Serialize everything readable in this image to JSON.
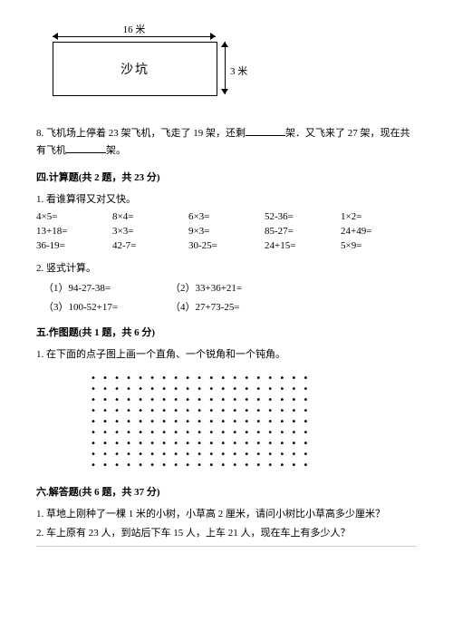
{
  "diagram": {
    "label": "沙坑",
    "width_label": "16 米",
    "height_label": "3 米"
  },
  "q8": {
    "text_a": "8. 飞机场上停着 23 架飞机，飞走了 19 架，还剩",
    "text_b": "架．又飞来了 27 架，现在共有飞机",
    "text_c": "架。"
  },
  "sec4": {
    "title": "四.计算题(共 2 题，共 23 分)",
    "sub1": "1. 看谁算得又对又快。",
    "rows": [
      [
        "4×5=",
        "8×4=",
        "6×3=",
        "52-36=",
        "1×2="
      ],
      [
        "13+18=",
        "3×3=",
        "9×3=",
        "85-27=",
        "24+49="
      ],
      [
        "36-19=",
        "42-7=",
        "30-25=",
        "24+15=",
        "5×9="
      ]
    ],
    "sub2": "2. 竖式计算。",
    "vert": [
      [
        "（1）94-27-38=",
        "（2）33+36+21="
      ],
      [
        "（3）100-52+17=",
        "（4）27+73-25="
      ]
    ]
  },
  "sec5": {
    "title": "五.作图题(共 1 题，共 6 分)",
    "sub1": "1. 在下面的点子图上画一个直角、一个锐角和一个钝角。",
    "dot_rows": 9,
    "dot_cols": 19
  },
  "sec6": {
    "title": "六.解答题(共 6 题，共 37 分)",
    "q1": "1. 草地上刚种了一棵 1 米的小树，小草高 2 厘米，请问小树比小草高多少厘米？",
    "q2": "2. 车上原有 23 人，到站后下车 15 人，上车 21 人，现在车上有多少人？"
  }
}
